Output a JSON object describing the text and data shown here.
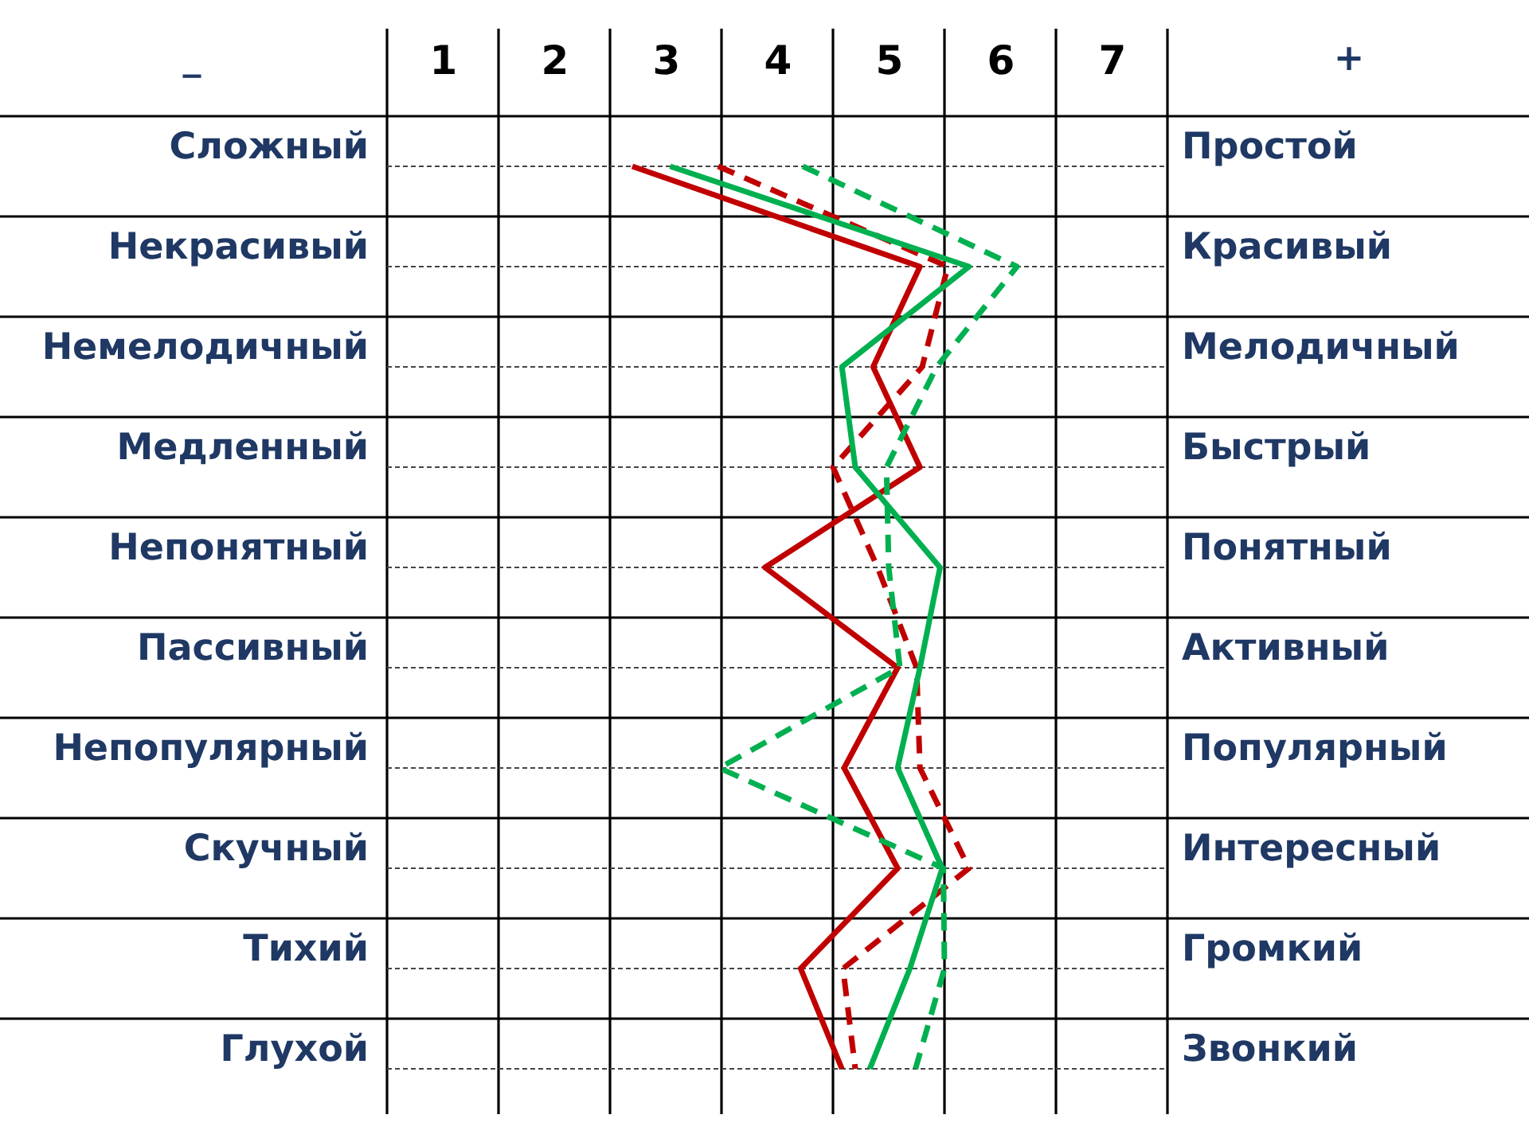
{
  "chart_data": {
    "type": "line",
    "orientation": "horizontal",
    "ylabel": "_",
    "y2label": "+",
    "categories": [
      "Сложный",
      "Некрасивый",
      "Немелодичный",
      "Медленный",
      "Непонятный",
      "Пассивный",
      "Непопулярный",
      "Скучный",
      "Тихий",
      "Глухой"
    ],
    "y2_categories": [
      "Простой",
      "Красивый",
      "Мелодичный",
      "Быстрый",
      "Понятный",
      "Активный",
      "Популярный",
      "Интересный",
      "Громкий",
      "Звонкий"
    ],
    "xlim": [
      0.5,
      7.5
    ],
    "xticks": [
      {
        "value": 0.5,
        "label": null
      },
      1,
      {
        "value": 1.5,
        "label": null
      },
      2,
      {
        "value": 2.5,
        "label": null
      },
      3,
      {
        "value": 3.5,
        "label": null
      },
      4,
      {
        "value": 4.5,
        "label": null
      },
      5,
      {
        "value": 5.5,
        "label": null
      },
      6,
      {
        "value": 6.5,
        "label": null
      },
      7,
      {
        "value": 7.5,
        "label": null
      }
    ],
    "grid": true,
    "series": [
      {
        "color": "#c00000",
        "line_style": "solid",
        "values": [
          2.7,
          5.28,
          4.86,
          5.28,
          3.89,
          5.08,
          4.6,
          5.08,
          4.21,
          4.58
        ]
      },
      {
        "color": "#c00000",
        "line_style": "dashed",
        "values": [
          3.47,
          5.53,
          5.3,
          4.5,
          4.9,
          5.25,
          5.28,
          5.72,
          4.59,
          4.7
        ]
      },
      {
        "color": "#00b050",
        "line_style": "solid",
        "values": [
          3.04,
          5.72,
          4.58,
          4.7,
          5.46,
          5.28,
          5.08,
          5.48,
          5.19,
          4.83
        ]
      },
      {
        "color": "#00b050",
        "line_style": "dashed",
        "values": [
          4.23,
          6.15,
          5.43,
          4.98,
          5.0,
          5.1,
          3.48,
          5.49,
          5.5,
          5.24
        ]
      }
    ]
  }
}
